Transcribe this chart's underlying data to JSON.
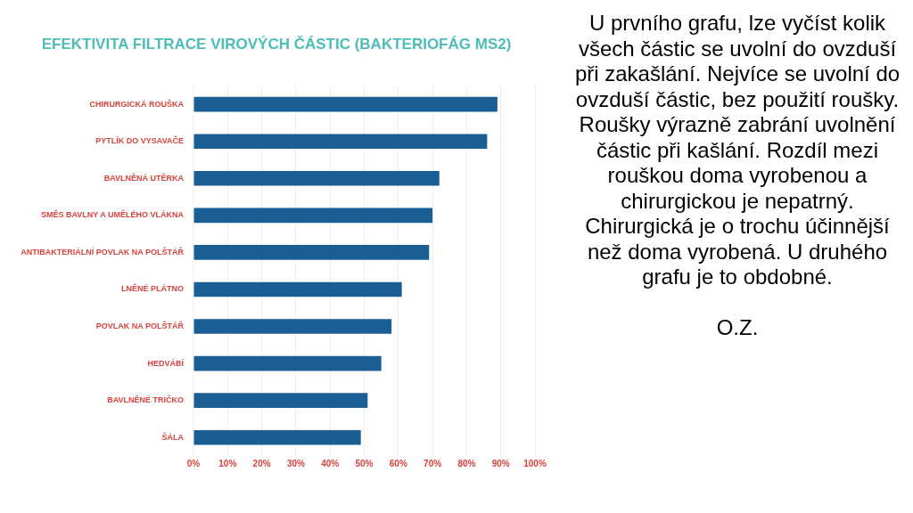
{
  "chart_data": {
    "type": "bar",
    "orientation": "horizontal",
    "title": "EFEKTIVITA FILTRACE VIROVÝCH ČÁSTIC (BAKTERIOFÁG MS2)",
    "categories": [
      "CHIRURGICKÁ ROUŠKA",
      "PYTLÍK DO VYSAVAČE",
      "BAVLNĚNÁ UTĚRKA",
      "SMĚS BAVLNY A UMĚLÉHO VLÁKNA",
      "ANTIBAKTERIÁLNÍ POVLAK NA POLŠTÁŘ",
      "LNĚNÉ PLÁTNO",
      "POVLAK NA POLŠTÁŘ",
      "HEDVÁBÍ",
      "BAVLNĚNÉ TRIČKO",
      "ŠÁLA"
    ],
    "values": [
      89,
      86,
      72,
      70,
      69,
      61,
      58,
      55,
      51,
      49
    ],
    "color": "#1a5e96",
    "xlim": [
      0,
      100
    ],
    "xticks": [
      {
        "value": 0,
        "label": "0%"
      },
      {
        "value": 10,
        "label": "10%"
      },
      {
        "value": 20,
        "label": "20%"
      },
      {
        "value": 30,
        "label": "30%"
      },
      {
        "value": 40,
        "label": "40%"
      },
      {
        "value": 50,
        "label": "50%"
      },
      {
        "value": 60,
        "label": "60%"
      },
      {
        "value": 70,
        "label": "70%"
      },
      {
        "value": 80,
        "label": "80%"
      },
      {
        "value": 90,
        "label": "90%"
      },
      {
        "value": 100,
        "label": "100%"
      }
    ],
    "grid": "x",
    "annotations": [
      "U prvního grafu, lze vyčíst kolik všech částic se uvolní do ovzduší při zakašlání. Nejvíce se uvolní do ovzduší částic, bez použití roušky. Roušky výrazně zabrání uvolnění částic při kašlání. Rozdíl mezi rouškou doma vyrobenou a chirurgickou je nepatrný. Chirurgická je o trochu účinnější než doma vyrobená. U druhého grafu je to obdobné.",
      "O.Z."
    ]
  }
}
